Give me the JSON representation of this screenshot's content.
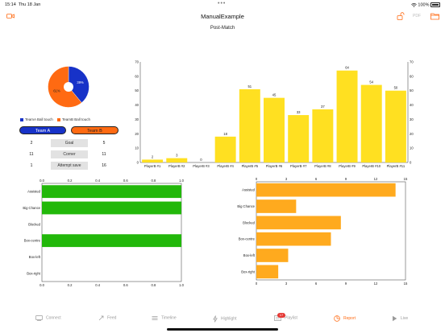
{
  "status": {
    "time": "15:14",
    "date": "Thu 18 Jan",
    "battery": "100%"
  },
  "nav": {
    "title": "ManualExample",
    "pdf_label": "PDF"
  },
  "page": {
    "subtitle": "Post-Match"
  },
  "colors": {
    "team_a": "#1732c8",
    "team_b": "#ff6a12",
    "green": "#22b80a",
    "amber": "#ffaa1e",
    "yellow": "#ffe021",
    "accent": "#ff6a12"
  },
  "pie": {
    "slices": [
      {
        "name": "TeamA Ball touch",
        "percent": 39,
        "label": "39%"
      },
      {
        "name": "TeamB Ball touch",
        "percent": 61,
        "label": "61%"
      }
    ]
  },
  "teams": {
    "a_label": "Team A",
    "b_label": "Team B"
  },
  "stats": [
    {
      "label": "Goal",
      "team_a": "2",
      "team_b": "5"
    },
    {
      "label": "Corner",
      "team_a": "11",
      "team_b": "11"
    },
    {
      "label": "Attempt save",
      "team_a": "1",
      "team_b": "16"
    }
  ],
  "chart_data": [
    {
      "type": "bar",
      "categories": [
        "PlayerB #1",
        "PlayerB #2",
        "PlayerB #3",
        "PlayerB #4",
        "PlayerB #5",
        "PlayerB #6",
        "PlayerB #7",
        "PlayerB #8",
        "PlayerB #9",
        "PlayerB #10",
        "PlayerB #11"
      ],
      "values": [
        2,
        3,
        0,
        18,
        51,
        45,
        33,
        37,
        64,
        54,
        50
      ],
      "ylim": [
        0,
        70
      ],
      "yticks": [
        0,
        10,
        20,
        30,
        40,
        50,
        60,
        70
      ],
      "grid": false
    },
    {
      "type": "bar",
      "orientation": "horizontal",
      "categories": [
        "Assisted",
        "Big Chance",
        "Blocked",
        "Box-centre",
        "Box-left",
        "Box-right"
      ],
      "values": [
        1,
        1,
        0,
        1,
        0,
        0
      ],
      "xlim": [
        0,
        1
      ],
      "xticks": [
        "0.0",
        "0.2",
        "0.4",
        "0.6",
        "0.8",
        "1.0"
      ],
      "grid": false
    },
    {
      "type": "bar",
      "orientation": "horizontal",
      "categories": [
        "Assisted",
        "Big Chance",
        "Blocked",
        "Box-centre",
        "Box-left",
        "Box-right"
      ],
      "values": [
        14,
        4,
        8.5,
        7.5,
        3.2,
        2.2
      ],
      "xlim": [
        0,
        15
      ],
      "xticks": [
        "0",
        "3",
        "6",
        "9",
        "12",
        "15"
      ],
      "grid": false
    }
  ],
  "tabs": [
    {
      "label": "Connect",
      "icon": "connect-icon"
    },
    {
      "label": "Feed",
      "icon": "feed-icon"
    },
    {
      "label": "Timeline",
      "icon": "timeline-icon"
    },
    {
      "label": "Highlight",
      "icon": "lightning-icon"
    },
    {
      "label": "Playlist",
      "icon": "playlist-icon",
      "badge": "17"
    },
    {
      "label": "Report",
      "icon": "report-icon",
      "active": true
    },
    {
      "label": "Live",
      "icon": "play-icon"
    }
  ]
}
